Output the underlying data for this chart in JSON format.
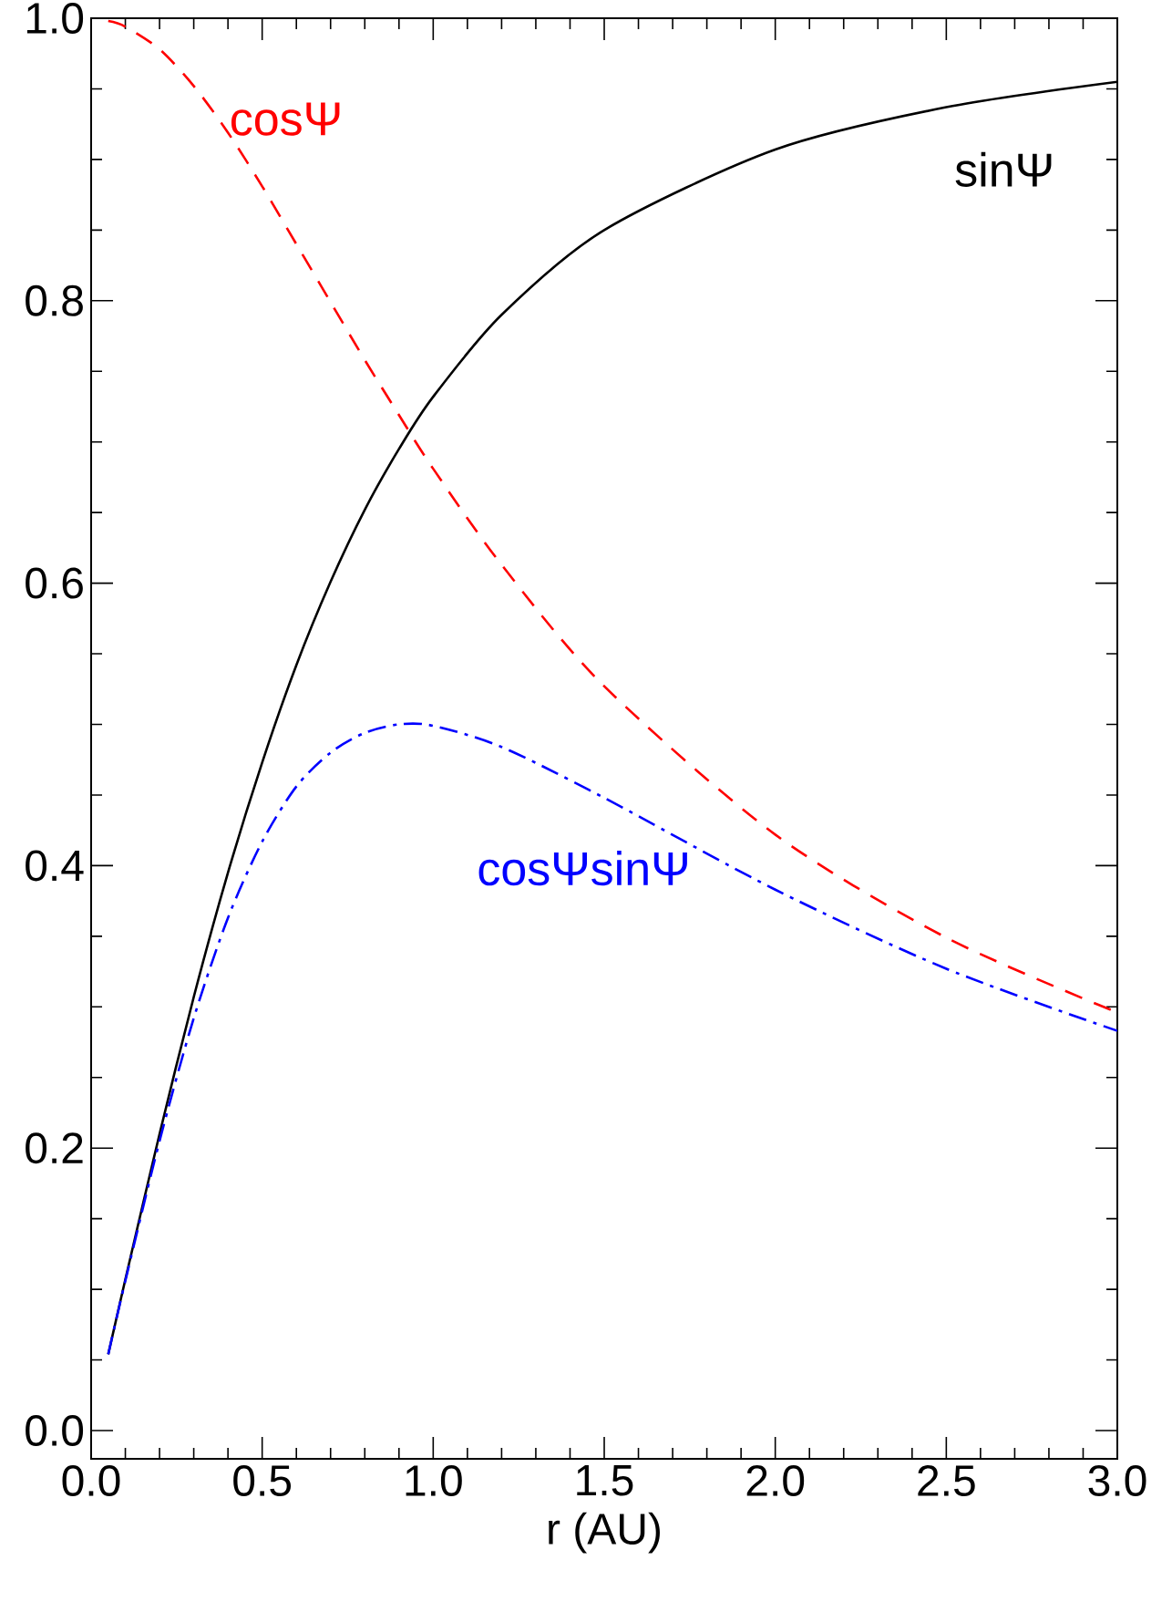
{
  "chart_data": {
    "type": "line",
    "xlabel": "r (AU)",
    "x": [
      0.05,
      0.1,
      0.2,
      0.3,
      0.4,
      0.5,
      0.6,
      0.7,
      0.8,
      0.9,
      1.0,
      1.2,
      1.5,
      2.0,
      2.5,
      3.0
    ],
    "series": [
      {
        "name": "sinΨ",
        "color": "#000000",
        "line_style": "solid",
        "values": [
          0.054,
          0.107,
          0.21,
          0.307,
          0.395,
          0.473,
          0.542,
          0.601,
          0.652,
          0.695,
          0.732,
          0.79,
          0.85,
          0.907,
          0.937,
          0.955
        ]
      },
      {
        "name": "cosΨ",
        "color": "#ff0000",
        "line_style": "dashed",
        "values": [
          0.998,
          0.994,
          0.978,
          0.952,
          0.919,
          0.881,
          0.84,
          0.799,
          0.758,
          0.719,
          0.681,
          0.613,
          0.527,
          0.422,
          0.349,
          0.296
        ]
      },
      {
        "name": "cosΨsinΨ",
        "color": "#0000ff",
        "line_style": "dashdot",
        "values": [
          0.054,
          0.106,
          0.205,
          0.292,
          0.363,
          0.417,
          0.456,
          0.48,
          0.494,
          0.5,
          0.499,
          0.484,
          0.448,
          0.383,
          0.327,
          0.283
        ]
      }
    ],
    "xlim": [
      0,
      3
    ],
    "ylim": [
      -0.02,
      1.0
    ],
    "xticks": [
      {
        "value": 0,
        "label": "0.0"
      },
      {
        "value": 0.5,
        "label": "0.5"
      },
      {
        "value": 1,
        "label": "1.0"
      },
      {
        "value": 1.5,
        "label": "1.5"
      },
      {
        "value": 2,
        "label": "2.0"
      },
      {
        "value": 2.5,
        "label": "2.5"
      },
      {
        "value": 3,
        "label": "3.0"
      }
    ],
    "yticks": [
      {
        "value": 0,
        "label": "0.0"
      },
      {
        "value": 0.2,
        "label": "0.2"
      },
      {
        "value": 0.4,
        "label": "0.4"
      },
      {
        "value": 0.6,
        "label": "0.6"
      },
      {
        "value": 0.8,
        "label": "0.8"
      },
      {
        "value": 1,
        "label": "1.0"
      }
    ],
    "grid": false,
    "marker": "none"
  }
}
